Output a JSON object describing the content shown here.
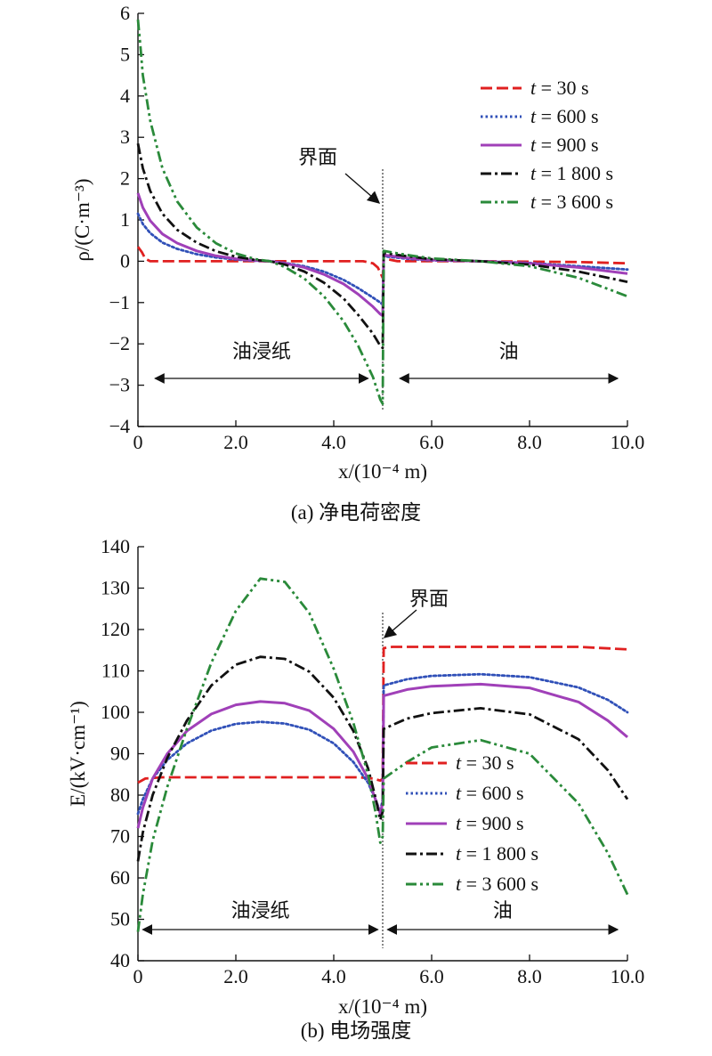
{
  "chart_data": [
    {
      "type": "line",
      "caption": "(a) 净电荷密度",
      "xlabel": "x/(10⁻⁴ m)",
      "ylabel": "ρ/(C·m⁻³)",
      "xlim": [
        0,
        10
      ],
      "ylim": [
        -4,
        6
      ],
      "xticks": [
        "0",
        "2.0",
        "4.0",
        "6.0",
        "8.0",
        "10.0"
      ],
      "xtick_values": [
        0,
        2,
        4,
        6,
        8,
        10
      ],
      "yticks": [
        "−4",
        "−3",
        "−2",
        "−1",
        "0",
        "1",
        "2",
        "3",
        "4",
        "5",
        "6"
      ],
      "ytick_values": [
        -4,
        -3,
        -2,
        -1,
        0,
        1,
        2,
        3,
        4,
        5,
        6
      ],
      "legend_position": "top-right",
      "interface": {
        "x": 5.0,
        "label": "界面"
      },
      "regions": [
        {
          "label": "油浸纸",
          "from": 0.35,
          "to": 4.7
        },
        {
          "label": "油",
          "from": 5.35,
          "to": 9.8
        }
      ],
      "series": [
        {
          "name": "t = 30 s",
          "color": "#e02020",
          "dash": "dashed",
          "points": [
            [
              0,
              0.35
            ],
            [
              0.08,
              0.22
            ],
            [
              0.15,
              0.06
            ],
            [
              0.25,
              0.0
            ],
            [
              1,
              0
            ],
            [
              2,
              0
            ],
            [
              3,
              0
            ],
            [
              4,
              0
            ],
            [
              4.6,
              0
            ],
            [
              4.8,
              -0.05
            ],
            [
              4.9,
              -0.15
            ],
            [
              4.98,
              -0.35
            ],
            [
              5.0,
              -0.4
            ],
            [
              5.02,
              0.12
            ],
            [
              5.1,
              0.05
            ],
            [
              5.3,
              0.0
            ],
            [
              7,
              0
            ],
            [
              9,
              -0.02
            ],
            [
              10,
              -0.05
            ]
          ]
        },
        {
          "name": "t = 600 s",
          "color": "#3050b8",
          "dash": "dotted",
          "points": [
            [
              0,
              1.15
            ],
            [
              0.1,
              0.9
            ],
            [
              0.25,
              0.68
            ],
            [
              0.5,
              0.45
            ],
            [
              0.8,
              0.3
            ],
            [
              1.2,
              0.17
            ],
            [
              1.6,
              0.09
            ],
            [
              2,
              0.04
            ],
            [
              2.4,
              0.01
            ],
            [
              2.7,
              0
            ],
            [
              3,
              -0.04
            ],
            [
              3.4,
              -0.12
            ],
            [
              3.8,
              -0.25
            ],
            [
              4.2,
              -0.45
            ],
            [
              4.5,
              -0.65
            ],
            [
              4.8,
              -0.88
            ],
            [
              4.95,
              -1.0
            ],
            [
              5.0,
              -1.05
            ],
            [
              5.02,
              0.12
            ],
            [
              5.5,
              0.06
            ],
            [
              6,
              0.02
            ],
            [
              7,
              0
            ],
            [
              8,
              -0.04
            ],
            [
              9,
              -0.12
            ],
            [
              10,
              -0.2
            ]
          ]
        },
        {
          "name": "t = 900 s",
          "color": "#a040b8",
          "dash": "solid",
          "points": [
            [
              0,
              1.65
            ],
            [
              0.1,
              1.3
            ],
            [
              0.25,
              0.98
            ],
            [
              0.5,
              0.66
            ],
            [
              0.8,
              0.44
            ],
            [
              1.2,
              0.25
            ],
            [
              1.6,
              0.13
            ],
            [
              2,
              0.06
            ],
            [
              2.4,
              0.02
            ],
            [
              2.7,
              0
            ],
            [
              3,
              -0.05
            ],
            [
              3.4,
              -0.15
            ],
            [
              3.8,
              -0.32
            ],
            [
              4.2,
              -0.55
            ],
            [
              4.5,
              -0.8
            ],
            [
              4.8,
              -1.1
            ],
            [
              4.95,
              -1.28
            ],
            [
              5.0,
              -1.32
            ],
            [
              5.02,
              0.15
            ],
            [
              5.5,
              0.08
            ],
            [
              6,
              0.03
            ],
            [
              7,
              0
            ],
            [
              8,
              -0.05
            ],
            [
              9,
              -0.15
            ],
            [
              10,
              -0.3
            ]
          ]
        },
        {
          "name": "t = 1 800 s",
          "color": "#111111",
          "dash": "dashdot",
          "points": [
            [
              0,
              2.85
            ],
            [
              0.1,
              2.25
            ],
            [
              0.25,
              1.7
            ],
            [
              0.5,
              1.15
            ],
            [
              0.8,
              0.76
            ],
            [
              1.2,
              0.45
            ],
            [
              1.6,
              0.24
            ],
            [
              2,
              0.11
            ],
            [
              2.4,
              0.03
            ],
            [
              2.7,
              0
            ],
            [
              3,
              -0.08
            ],
            [
              3.4,
              -0.25
            ],
            [
              3.8,
              -0.52
            ],
            [
              4.2,
              -0.9
            ],
            [
              4.5,
              -1.3
            ],
            [
              4.8,
              -1.75
            ],
            [
              4.95,
              -2.05
            ],
            [
              5.0,
              -2.1
            ],
            [
              5.02,
              0.2
            ],
            [
              5.5,
              0.12
            ],
            [
              6,
              0.05
            ],
            [
              7,
              0
            ],
            [
              8,
              -0.08
            ],
            [
              9,
              -0.25
            ],
            [
              10,
              -0.5
            ]
          ]
        },
        {
          "name": "t = 3 600 s",
          "color": "#2a8a3a",
          "dash": "dashdotdot",
          "points": [
            [
              0,
              5.85
            ],
            [
              0.05,
              5.2
            ],
            [
              0.1,
              4.5
            ],
            [
              0.25,
              3.4
            ],
            [
              0.5,
              2.25
            ],
            [
              0.8,
              1.45
            ],
            [
              1.2,
              0.82
            ],
            [
              1.6,
              0.43
            ],
            [
              2,
              0.19
            ],
            [
              2.4,
              0.05
            ],
            [
              2.7,
              0
            ],
            [
              3,
              -0.14
            ],
            [
              3.4,
              -0.42
            ],
            [
              3.8,
              -0.85
            ],
            [
              4.2,
              -1.45
            ],
            [
              4.5,
              -2.05
            ],
            [
              4.8,
              -2.8
            ],
            [
              4.95,
              -3.35
            ],
            [
              5.0,
              -3.45
            ],
            [
              5.02,
              0.25
            ],
            [
              5.5,
              0.15
            ],
            [
              6,
              0.07
            ],
            [
              7,
              0
            ],
            [
              8,
              -0.12
            ],
            [
              9,
              -0.4
            ],
            [
              10,
              -0.85
            ]
          ]
        }
      ]
    },
    {
      "type": "line",
      "caption": "(b) 电场强度",
      "xlabel": "x/(10⁻⁴ m)",
      "ylabel": "E/(kV·cm⁻¹)",
      "xlim": [
        0,
        10
      ],
      "ylim": [
        40,
        140
      ],
      "xticks": [
        "0",
        "2.0",
        "4.0",
        "6.0",
        "8.0",
        "10.0"
      ],
      "xtick_values": [
        0,
        2,
        4,
        6,
        8,
        10
      ],
      "yticks": [
        "40",
        "50",
        "60",
        "70",
        "80",
        "90",
        "100",
        "110",
        "120",
        "130",
        "140"
      ],
      "ytick_values": [
        40,
        50,
        60,
        70,
        80,
        90,
        100,
        110,
        120,
        130,
        140
      ],
      "legend_position": "bottom-right",
      "interface": {
        "x": 5.0,
        "label": "界面"
      },
      "regions": [
        {
          "label": "油浸纸",
          "from": 0.1,
          "to": 4.9
        },
        {
          "label": "油",
          "from": 5.1,
          "to": 9.8
        }
      ],
      "series": [
        {
          "name": "t = 30 s",
          "color": "#e02020",
          "dash": "dashed",
          "points": [
            [
              0,
              83
            ],
            [
              0.15,
              84
            ],
            [
              0.5,
              84.3
            ],
            [
              2.5,
              84.3
            ],
            [
              4.5,
              84.3
            ],
            [
              4.8,
              84
            ],
            [
              4.95,
              83.5
            ],
            [
              5.0,
              84
            ],
            [
              5.02,
              115.5
            ],
            [
              5.2,
              115.8
            ],
            [
              7,
              115.8
            ],
            [
              9,
              115.8
            ],
            [
              10,
              115.2
            ]
          ]
        },
        {
          "name": "t = 600 s",
          "color": "#3050b8",
          "dash": "dotted",
          "points": [
            [
              0,
              75.5
            ],
            [
              0.1,
              79
            ],
            [
              0.3,
              84
            ],
            [
              0.6,
              88.5
            ],
            [
              1,
              92.5
            ],
            [
              1.5,
              95.6
            ],
            [
              2,
              97.2
            ],
            [
              2.5,
              97.7
            ],
            [
              3,
              97.3
            ],
            [
              3.5,
              95.8
            ],
            [
              4,
              92.5
            ],
            [
              4.4,
              88
            ],
            [
              4.7,
              83
            ],
            [
              4.85,
              79
            ],
            [
              4.95,
              76
            ],
            [
              5.0,
              79
            ],
            [
              5.02,
              106.5
            ],
            [
              5.5,
              108
            ],
            [
              6,
              108.8
            ],
            [
              7,
              109.2
            ],
            [
              8,
              108.5
            ],
            [
              9,
              106
            ],
            [
              9.6,
              103
            ],
            [
              10,
              100
            ]
          ]
        },
        {
          "name": "t = 900 s",
          "color": "#a040b8",
          "dash": "solid",
          "points": [
            [
              0,
              72
            ],
            [
              0.1,
              77
            ],
            [
              0.3,
              84
            ],
            [
              0.6,
              90
            ],
            [
              1,
              95.5
            ],
            [
              1.5,
              99.6
            ],
            [
              2,
              101.8
            ],
            [
              2.5,
              102.6
            ],
            [
              3,
              102.2
            ],
            [
              3.5,
              100.4
            ],
            [
              4,
              96
            ],
            [
              4.4,
              90.5
            ],
            [
              4.7,
              84
            ],
            [
              4.85,
              79
            ],
            [
              4.95,
              75.5
            ],
            [
              5.0,
              78
            ],
            [
              5.02,
              104
            ],
            [
              5.5,
              105.5
            ],
            [
              6,
              106.3
            ],
            [
              7,
              106.8
            ],
            [
              8,
              105.9
            ],
            [
              9,
              102.5
            ],
            [
              9.6,
              98
            ],
            [
              10,
              94
            ]
          ]
        },
        {
          "name": "t = 1 800 s",
          "color": "#111111",
          "dash": "dashdot",
          "points": [
            [
              0,
              64
            ],
            [
              0.1,
              71
            ],
            [
              0.3,
              80
            ],
            [
              0.6,
              89
            ],
            [
              1,
              98
            ],
            [
              1.5,
              106.5
            ],
            [
              2,
              111.5
            ],
            [
              2.5,
              113.4
            ],
            [
              3,
              112.9
            ],
            [
              3.5,
              109.8
            ],
            [
              4,
              103.5
            ],
            [
              4.4,
              95.5
            ],
            [
              4.7,
              86.5
            ],
            [
              4.85,
              79.5
            ],
            [
              4.95,
              74
            ],
            [
              5.0,
              76
            ],
            [
              5.02,
              96
            ],
            [
              5.5,
              98.5
            ],
            [
              6,
              99.8
            ],
            [
              7,
              101
            ],
            [
              8,
              99.5
            ],
            [
              9,
              93.5
            ],
            [
              9.6,
              86
            ],
            [
              10,
              79
            ]
          ]
        },
        {
          "name": "t = 3 600 s",
          "color": "#2a8a3a",
          "dash": "dashdotdot",
          "points": [
            [
              0,
              47
            ],
            [
              0.1,
              56
            ],
            [
              0.3,
              69
            ],
            [
              0.6,
              82
            ],
            [
              1,
              96
            ],
            [
              1.5,
              112
            ],
            [
              2,
              124.5
            ],
            [
              2.5,
              132.3
            ],
            [
              3,
              131.5
            ],
            [
              3.5,
              124
            ],
            [
              4,
              110.5
            ],
            [
              4.4,
              97.5
            ],
            [
              4.7,
              85
            ],
            [
              4.85,
              76
            ],
            [
              4.95,
              68.5
            ],
            [
              5.0,
              70
            ],
            [
              5.02,
              84
            ],
            [
              5.5,
              88
            ],
            [
              6,
              91.5
            ],
            [
              7,
              93.3
            ],
            [
              8,
              90
            ],
            [
              9,
              78
            ],
            [
              9.6,
              66
            ],
            [
              10,
              56
            ]
          ]
        }
      ]
    }
  ]
}
